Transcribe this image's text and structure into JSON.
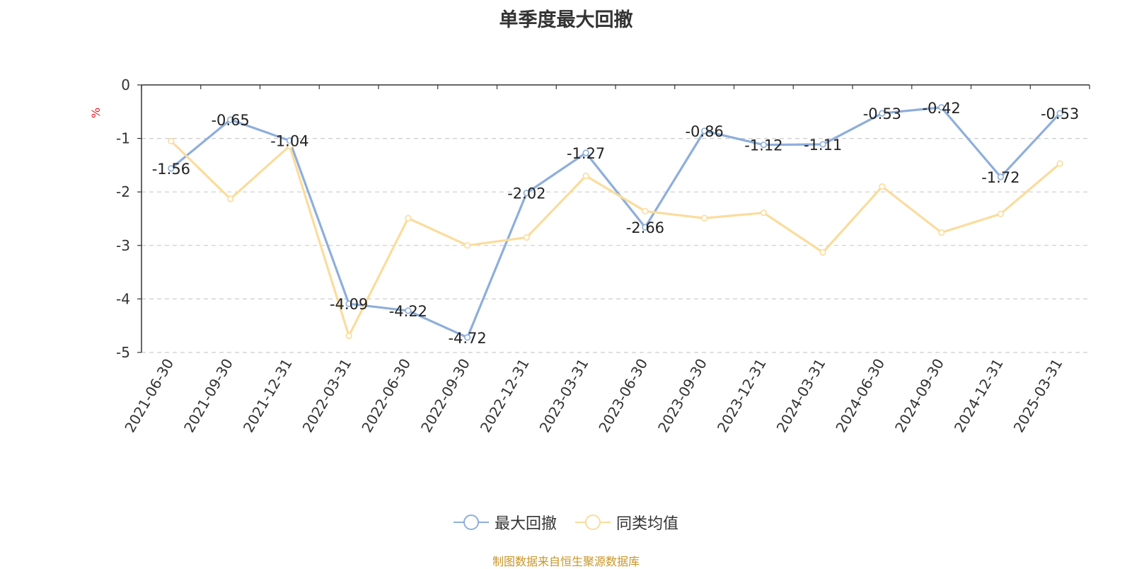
{
  "chart_data": {
    "type": "line",
    "title": "单季度最大回撤",
    "ylabel": "%",
    "ylim": [
      -5,
      0
    ],
    "yticks": [
      0,
      -1,
      -2,
      -3,
      -4,
      -5
    ],
    "grid": true,
    "legend_position": "bottom-center",
    "categories": [
      "2021-06-30",
      "2021-09-30",
      "2021-12-31",
      "2022-03-31",
      "2022-06-30",
      "2022-09-30",
      "2022-12-31",
      "2023-03-31",
      "2023-06-30",
      "2023-09-30",
      "2023-12-31",
      "2024-03-31",
      "2024-06-30",
      "2024-09-30",
      "2024-12-31",
      "2025-03-31"
    ],
    "series": [
      {
        "name": "最大回撤",
        "color": "#8eaedb",
        "values": [
          -1.56,
          -0.65,
          -1.04,
          -4.09,
          -4.22,
          -4.72,
          -2.02,
          -1.27,
          -2.66,
          -0.86,
          -1.12,
          -1.11,
          -0.53,
          -0.42,
          -1.72,
          -0.53
        ],
        "show_labels": true
      },
      {
        "name": "同类均值",
        "color": "#fbdc9c",
        "values": [
          -1.05,
          -2.13,
          -1.14,
          -4.69,
          -2.49,
          -3.0,
          -2.85,
          -1.7,
          -2.36,
          -2.49,
          -2.39,
          -3.13,
          -1.9,
          -2.76,
          -2.41,
          -1.47
        ],
        "show_labels": false
      }
    ]
  },
  "footer": "制图数据来自恒生聚源数据库"
}
